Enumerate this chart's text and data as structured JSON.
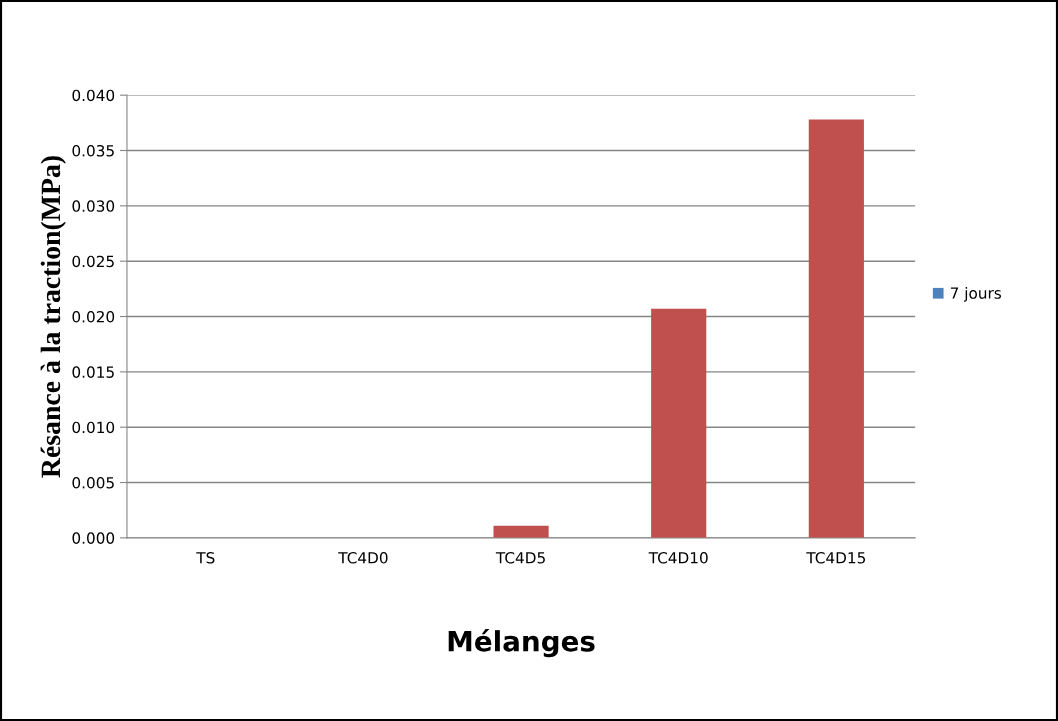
{
  "chart_data": {
    "type": "bar",
    "categories": [
      "TS",
      "TC4D0",
      "TC4D5",
      "TC4D10",
      "TC4D15"
    ],
    "series": [
      {
        "name": "7 jours",
        "color": "#4f81bd",
        "colors": [
          "#c0504d",
          "#c0504d",
          "#c0504d",
          "#c0504d",
          "#c0504d"
        ],
        "values": [
          0,
          0,
          0.0011,
          0.0207,
          0.0378
        ]
      }
    ],
    "xlabel": "Mélanges",
    "ylabel": "Résance à la traction(MPa)",
    "ylim": [
      0,
      0.04
    ],
    "yticks": [
      {
        "value": 0,
        "label": "0.000"
      },
      {
        "value": 0.005,
        "label": "0.005"
      },
      {
        "value": 0.01,
        "label": "0.010"
      },
      {
        "value": 0.015,
        "label": "0.015"
      },
      {
        "value": 0.02,
        "label": "0.020"
      },
      {
        "value": 0.025,
        "label": "0.025"
      },
      {
        "value": 0.03,
        "label": "0.030"
      },
      {
        "value": 0.035,
        "label": "0.035"
      },
      {
        "value": 0.04,
        "label": "0.040"
      }
    ],
    "grid": "y",
    "legend": "right"
  }
}
